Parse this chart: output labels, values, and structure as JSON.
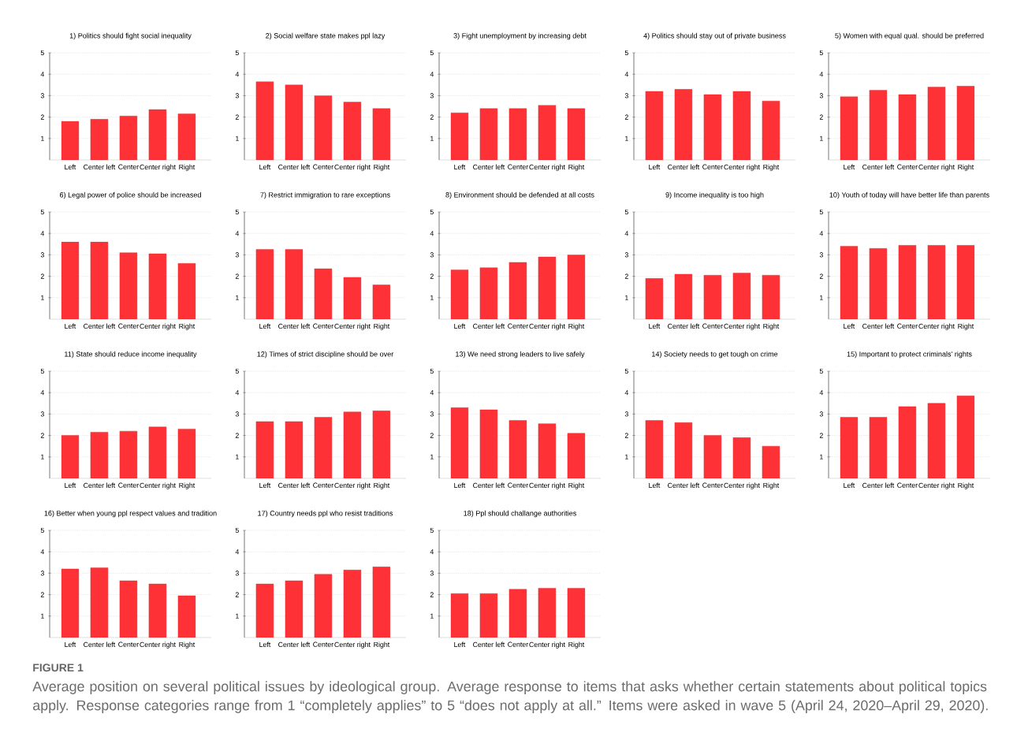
{
  "chart_data": [
    {
      "type": "bar",
      "title": "1) Politics should fight social inequality",
      "categories": [
        "Left",
        "Center left",
        "Center",
        "Center right",
        "Right"
      ],
      "values": [
        1.8,
        1.9,
        2.05,
        2.35,
        2.15
      ],
      "color": "#fe3136",
      "ylim": [
        0,
        5
      ],
      "yticks": [
        1,
        2,
        3,
        4,
        5
      ],
      "grid": "y"
    },
    {
      "type": "bar",
      "title": "2) Social welfare state makes ppl lazy",
      "categories": [
        "Left",
        "Center left",
        "Center",
        "Center right",
        "Right"
      ],
      "values": [
        3.65,
        3.5,
        3.0,
        2.7,
        2.4
      ],
      "color": "#fe3136",
      "ylim": [
        0,
        5
      ],
      "yticks": [
        1,
        2,
        3,
        4,
        5
      ],
      "grid": "y"
    },
    {
      "type": "bar",
      "title": "3) Fight unemployment by increasing debt",
      "categories": [
        "Left",
        "Center left",
        "Center",
        "Center right",
        "Right"
      ],
      "values": [
        2.2,
        2.4,
        2.4,
        2.55,
        2.4
      ],
      "color": "#fe3136",
      "ylim": [
        0,
        5
      ],
      "yticks": [
        1,
        2,
        3,
        4,
        5
      ],
      "grid": "y"
    },
    {
      "type": "bar",
      "title": "4) Politics should stay out of private business",
      "categories": [
        "Left",
        "Center left",
        "Center",
        "Center right",
        "Right"
      ],
      "values": [
        3.2,
        3.3,
        3.05,
        3.2,
        2.75
      ],
      "color": "#fe3136",
      "ylim": [
        0,
        5
      ],
      "yticks": [
        1,
        2,
        3,
        4,
        5
      ],
      "grid": "y"
    },
    {
      "type": "bar",
      "title": "5) Women with equal qual. should be preferred",
      "categories": [
        "Left",
        "Center left",
        "Center",
        "Center right",
        "Right"
      ],
      "values": [
        2.95,
        3.25,
        3.05,
        3.4,
        3.45
      ],
      "color": "#fe3136",
      "ylim": [
        0,
        5
      ],
      "yticks": [
        1,
        2,
        3,
        4,
        5
      ],
      "grid": "y"
    },
    {
      "type": "bar",
      "title": "6) Legal power of police should be increased",
      "categories": [
        "Left",
        "Center left",
        "Center",
        "Center right",
        "Right"
      ],
      "values": [
        3.6,
        3.6,
        3.1,
        3.05,
        2.6
      ],
      "color": "#fe3136",
      "ylim": [
        0,
        5
      ],
      "yticks": [
        1,
        2,
        3,
        4,
        5
      ],
      "grid": "y"
    },
    {
      "type": "bar",
      "title": "7) Restrict immigration to rare exceptions",
      "categories": [
        "Left",
        "Center left",
        "Center",
        "Center right",
        "Right"
      ],
      "values": [
        3.25,
        3.25,
        2.35,
        1.95,
        1.6
      ],
      "color": "#fe3136",
      "ylim": [
        0,
        5
      ],
      "yticks": [
        1,
        2,
        3,
        4,
        5
      ],
      "grid": "y"
    },
    {
      "type": "bar",
      "title": "8) Environment should be defended at all costs",
      "categories": [
        "Left",
        "Center left",
        "Center",
        "Center right",
        "Right"
      ],
      "values": [
        2.3,
        2.4,
        2.65,
        2.9,
        3.0
      ],
      "color": "#fe3136",
      "ylim": [
        0,
        5
      ],
      "yticks": [
        1,
        2,
        3,
        4,
        5
      ],
      "grid": "y"
    },
    {
      "type": "bar",
      "title": "9) Income inequality is too high",
      "categories": [
        "Left",
        "Center left",
        "Center",
        "Center right",
        "Right"
      ],
      "values": [
        1.9,
        2.1,
        2.05,
        2.15,
        2.05
      ],
      "color": "#fe3136",
      "ylim": [
        0,
        5
      ],
      "yticks": [
        1,
        2,
        3,
        4,
        5
      ],
      "grid": "y"
    },
    {
      "type": "bar",
      "title": "10) Youth of today will have better life than parents",
      "categories": [
        "Left",
        "Center left",
        "Center",
        "Center right",
        "Right"
      ],
      "values": [
        3.4,
        3.3,
        3.45,
        3.45,
        3.45
      ],
      "color": "#fe3136",
      "ylim": [
        0,
        5
      ],
      "yticks": [
        1,
        2,
        3,
        4,
        5
      ],
      "grid": "y"
    },
    {
      "type": "bar",
      "title": "11) State should reduce income inequality",
      "categories": [
        "Left",
        "Center left",
        "Center",
        "Center right",
        "Right"
      ],
      "values": [
        2.0,
        2.15,
        2.2,
        2.4,
        2.3
      ],
      "color": "#fe3136",
      "ylim": [
        0,
        5
      ],
      "yticks": [
        1,
        2,
        3,
        4,
        5
      ],
      "grid": "y"
    },
    {
      "type": "bar",
      "title": "12) Times of strict discipline should be over",
      "categories": [
        "Left",
        "Center left",
        "Center",
        "Center right",
        "Right"
      ],
      "values": [
        2.65,
        2.65,
        2.85,
        3.1,
        3.15
      ],
      "color": "#fe3136",
      "ylim": [
        0,
        5
      ],
      "yticks": [
        1,
        2,
        3,
        4,
        5
      ],
      "grid": "y"
    },
    {
      "type": "bar",
      "title": "13) We need strong leaders to live safely",
      "categories": [
        "Left",
        "Center left",
        "Center",
        "Center right",
        "Right"
      ],
      "values": [
        3.3,
        3.2,
        2.7,
        2.55,
        2.1
      ],
      "color": "#fe3136",
      "ylim": [
        0,
        5
      ],
      "yticks": [
        1,
        2,
        3,
        4,
        5
      ],
      "grid": "y"
    },
    {
      "type": "bar",
      "title": "14) Society needs to get tough on crime",
      "categories": [
        "Left",
        "Center left",
        "Center",
        "Center right",
        "Right"
      ],
      "values": [
        2.7,
        2.6,
        2.0,
        1.9,
        1.5
      ],
      "color": "#fe3136",
      "ylim": [
        0,
        5
      ],
      "yticks": [
        1,
        2,
        3,
        4,
        5
      ],
      "grid": "y"
    },
    {
      "type": "bar",
      "title": "15) Important to protect criminals' rights",
      "categories": [
        "Left",
        "Center left",
        "Center",
        "Center right",
        "Right"
      ],
      "values": [
        2.85,
        2.85,
        3.35,
        3.5,
        3.85
      ],
      "color": "#fe3136",
      "ylim": [
        0,
        5
      ],
      "yticks": [
        1,
        2,
        3,
        4,
        5
      ],
      "grid": "y"
    },
    {
      "type": "bar",
      "title": "16) Better when young ppl respect values and tradition",
      "categories": [
        "Left",
        "Center left",
        "Center",
        "Center right",
        "Right"
      ],
      "values": [
        3.2,
        3.25,
        2.65,
        2.5,
        1.95
      ],
      "color": "#fe3136",
      "ylim": [
        0,
        5
      ],
      "yticks": [
        1,
        2,
        3,
        4,
        5
      ],
      "grid": "y"
    },
    {
      "type": "bar",
      "title": "17) Country needs ppl who resist traditions",
      "categories": [
        "Left",
        "Center left",
        "Center",
        "Center right",
        "Right"
      ],
      "values": [
        2.5,
        2.65,
        2.95,
        3.15,
        3.3
      ],
      "color": "#fe3136",
      "ylim": [
        0,
        5
      ],
      "yticks": [
        1,
        2,
        3,
        4,
        5
      ],
      "grid": "y"
    },
    {
      "type": "bar",
      "title": "18) Ppl should challange authorities",
      "categories": [
        "Left",
        "Center left",
        "Center",
        "Center right",
        "Right"
      ],
      "values": [
        2.05,
        2.05,
        2.25,
        2.3,
        2.3
      ],
      "color": "#fe3136",
      "ylim": [
        0,
        5
      ],
      "yticks": [
        1,
        2,
        3,
        4,
        5
      ],
      "grid": "y"
    },
    {
      "type": "other",
      "title": "FIGURE 1",
      "annotations": [
        "Average position on several political issues by ideological group. Average response to items that asks whether certain statements about political topics apply. Response categories range from 1 “completely applies” to 5 “does not apply at all.” Items were asked in wave 5 (April 24, 2020–April 29, 2020)."
      ]
    }
  ]
}
